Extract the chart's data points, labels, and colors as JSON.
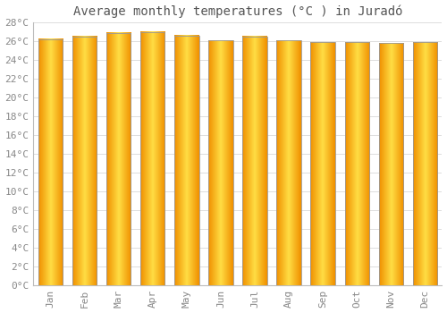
{
  "title": "Average monthly temperatures (°C ) in Juradó",
  "months": [
    "Jan",
    "Feb",
    "Mar",
    "Apr",
    "May",
    "Jun",
    "Jul",
    "Aug",
    "Sep",
    "Oct",
    "Nov",
    "Dec"
  ],
  "values": [
    26.2,
    26.5,
    26.9,
    27.0,
    26.6,
    26.1,
    26.5,
    26.1,
    25.9,
    25.9,
    25.8,
    25.9
  ],
  "bar_color_center": "#FFCC33",
  "bar_color_edge": "#F0A000",
  "bar_border_color": "#B8860B",
  "background_color": "#FFFFFF",
  "grid_color": "#DDDDDD",
  "ylim": [
    0,
    28
  ],
  "yticks": [
    0,
    2,
    4,
    6,
    8,
    10,
    12,
    14,
    16,
    18,
    20,
    22,
    24,
    26,
    28
  ],
  "title_fontsize": 10,
  "tick_fontsize": 8,
  "title_color": "#555555",
  "tick_color": "#888888",
  "figsize": [
    5.0,
    3.5
  ],
  "dpi": 100
}
